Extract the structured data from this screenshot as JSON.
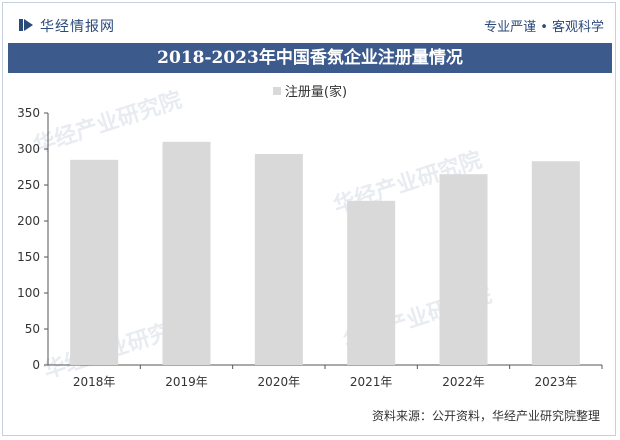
{
  "header": {
    "brand": "华经情报网",
    "tagline": "专业严谨 • 客观科学"
  },
  "title": "2018-2023年中国香氛企业注册量情况",
  "source": "资料来源：公开资料，华经产业研究院整理",
  "watermark": "华经产业研究院",
  "colors": {
    "title_bg": "#3c5a8c",
    "bar": "#d9d9d9",
    "brand": "#2b4a7a"
  },
  "chart_data": {
    "type": "bar",
    "categories": [
      "2018年",
      "2019年",
      "2020年",
      "2021年",
      "2022年",
      "2023年"
    ],
    "series": [
      {
        "name": "注册量(家)",
        "values": [
          285,
          310,
          293,
          228,
          265,
          283
        ]
      }
    ],
    "ylim": [
      0,
      350
    ],
    "yticks": [
      0,
      50,
      100,
      150,
      200,
      250,
      300,
      350
    ],
    "legend_position": "top-center",
    "grid": false
  }
}
